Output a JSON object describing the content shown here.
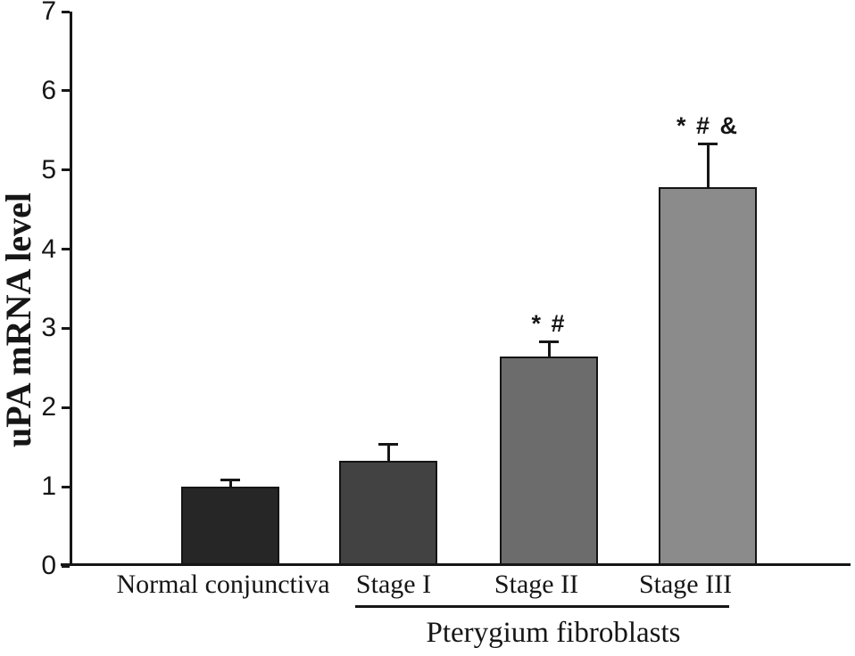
{
  "figure": {
    "background": "#ffffff"
  },
  "chart_data": {
    "type": "bar",
    "title": "",
    "xlabel": "",
    "ylabel": "uPA mRNA level",
    "ylim": [
      0,
      7
    ],
    "yticks": [
      "0",
      "1",
      "2",
      "3",
      "4",
      "5",
      "6",
      "7"
    ],
    "grid": false,
    "legend": "none",
    "categories": [
      "Normal conjunctiva",
      "Stage I",
      "Stage II",
      "Stage III"
    ],
    "values": [
      1.0,
      1.33,
      2.65,
      4.78
    ],
    "error_bars": [
      0.09,
      0.21,
      0.19,
      0.55
    ],
    "annotations": [
      "",
      "",
      "* #",
      "* # &"
    ],
    "bar_colors": [
      "#262626",
      "#424242",
      "#6c6c6c",
      "#8b8b8b"
    ],
    "group_label": "Pterygium fibroblasts",
    "group_span_categories": [
      "Stage I",
      "Stage II",
      "Stage III"
    ]
  },
  "colors": {
    "axis": "#161616",
    "text": "#161616",
    "background": "#ffffff"
  }
}
